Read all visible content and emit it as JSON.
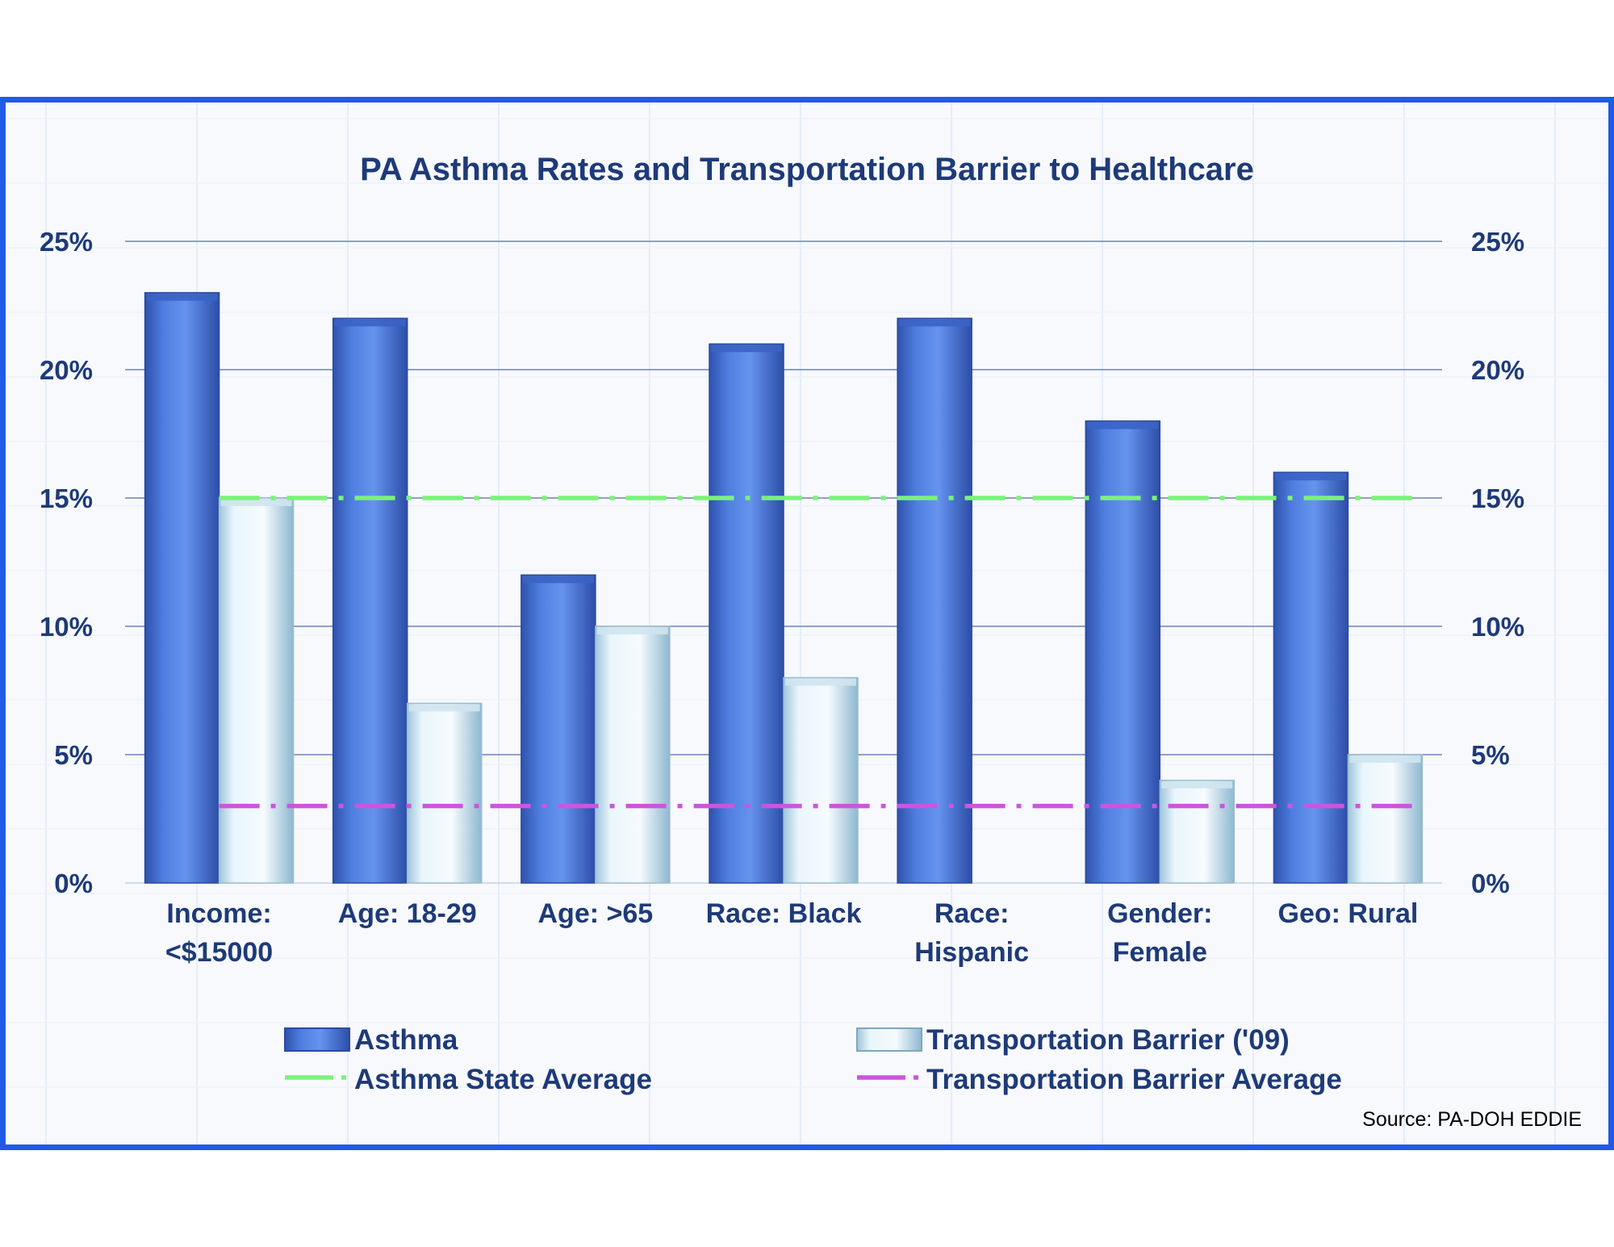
{
  "chart_data": {
    "type": "bar",
    "title": "PA Asthma Rates and Transportation Barrier to Healthcare",
    "categories": [
      [
        "Income:",
        "<$15000"
      ],
      [
        "Age: 18-29"
      ],
      [
        "Age:  >65"
      ],
      [
        "Race: Black"
      ],
      [
        "Race:",
        "Hispanic"
      ],
      [
        "Gender:",
        "Female"
      ],
      [
        "Geo: Rural"
      ]
    ],
    "series": [
      {
        "name": "Asthma",
        "values": [
          23,
          22,
          12,
          21,
          22,
          18,
          16
        ],
        "color": "#4a78d8"
      },
      {
        "name": "Transportation Barrier ('09)",
        "values": [
          15,
          7,
          10,
          8,
          null,
          4,
          5
        ],
        "color": "#e6f4fb"
      }
    ],
    "reference_lines": [
      {
        "name": "Asthma State Average",
        "value": 15,
        "color": "#7cf27c",
        "style": "dash-dot"
      },
      {
        "name": "Transportation Barrier Average",
        "value": 3,
        "color": "#cc55dd",
        "style": "dash-dot"
      }
    ],
    "ylim": [
      0,
      25
    ],
    "yticks": [
      "0%",
      "5%",
      "10%",
      "15%",
      "20%",
      "25%"
    ],
    "ytick_values": [
      0,
      5,
      10,
      15,
      20,
      25
    ],
    "secondary_axis": true,
    "grid": true,
    "legend_position": "bottom",
    "source": "Source: PA-DOH EDDIE"
  }
}
